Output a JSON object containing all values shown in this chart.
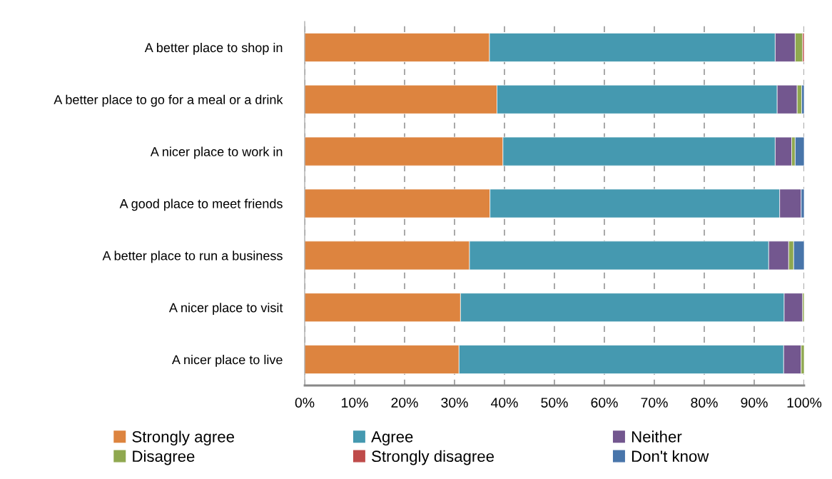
{
  "chart_data": {
    "type": "bar",
    "orientation": "horizontal",
    "stacked": true,
    "categories": [
      "A better place to shop in",
      "A better place to go for a meal or a drink",
      "A nicer place to work in",
      "A good place to meet friends",
      "A better place to run a business",
      "A nicer place to visit",
      "A nicer place to live"
    ],
    "series": [
      {
        "name": "Strongly agree",
        "color": "#dd843f",
        "values": [
          37,
          38.5,
          39.7,
          37.1,
          33,
          31.2,
          30.9
        ]
      },
      {
        "name": "Agree",
        "color": "#4599b0",
        "values": [
          57.2,
          56.1,
          54.5,
          58.0,
          59.9,
          64.8,
          65.0
        ]
      },
      {
        "name": "Neither",
        "color": "#73578f",
        "values": [
          4.0,
          4.0,
          3.3,
          4.3,
          4.0,
          3.7,
          3.5
        ]
      },
      {
        "name": "Disagree",
        "color": "#8fa84f",
        "values": [
          1.5,
          0.9,
          0.7,
          null,
          1.0,
          0.3,
          0.6
        ]
      },
      {
        "name": "Strongly disagree",
        "color": "#bf4b4a",
        "values": [
          0.3,
          null,
          null,
          null,
          null,
          null,
          null
        ]
      },
      {
        "name": "Don't know",
        "color": "#4875aa",
        "values": [
          null,
          0.5,
          1.8,
          0.6,
          2.1,
          null,
          null
        ]
      }
    ],
    "xlim": [
      0,
      100
    ],
    "xticks": [
      {
        "value": 0,
        "label": "0%"
      },
      {
        "value": 10,
        "label": "10%"
      },
      {
        "value": 20,
        "label": "20%"
      },
      {
        "value": 30,
        "label": "30%"
      },
      {
        "value": 40,
        "label": "40%"
      },
      {
        "value": 50,
        "label": "50%"
      },
      {
        "value": 60,
        "label": "60%"
      },
      {
        "value": 70,
        "label": "70%"
      },
      {
        "value": 80,
        "label": "80%"
      },
      {
        "value": 90,
        "label": "90%"
      },
      {
        "value": 100,
        "label": "100%"
      }
    ],
    "grid": "x",
    "legend": "bottom"
  }
}
